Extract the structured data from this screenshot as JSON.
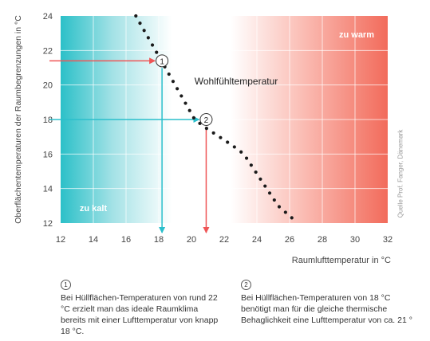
{
  "chart_data": {
    "type": "line",
    "xlabel": "Raumlufttemperatur in °C",
    "ylabel": "Oberflächentemperaturen der Raumbegrenzungen in °C",
    "xlim": [
      12,
      32
    ],
    "ylim": [
      12,
      24
    ],
    "x_ticks": [
      "12",
      "14",
      "16",
      "18",
      "20",
      "22",
      "24",
      "26",
      "28",
      "30",
      "32"
    ],
    "y_ticks": [
      "12",
      "14",
      "16",
      "18",
      "20",
      "22",
      "24"
    ],
    "series": [
      {
        "name": "Wohlfühltemperatur",
        "style": "dotted",
        "points": [
          [
            16.6,
            24
          ],
          [
            17.2,
            23
          ],
          [
            17.8,
            22
          ],
          [
            18.4,
            21
          ],
          [
            19.0,
            20
          ],
          [
            19.6,
            19
          ],
          [
            20.2,
            18
          ],
          [
            20.9,
            17.5
          ],
          [
            21.7,
            17
          ],
          [
            22.5,
            16.5
          ],
          [
            23.2,
            16
          ],
          [
            23.9,
            15
          ],
          [
            24.6,
            14
          ],
          [
            25.3,
            13
          ],
          [
            26.5,
            12
          ]
        ]
      }
    ],
    "region_labels": {
      "cold": "zu kalt",
      "warm": "zu warm"
    },
    "markers": [
      {
        "id": "1",
        "x": 18.2,
        "y": 21.4
      },
      {
        "id": "2",
        "x": 20.9,
        "y": 18
      }
    ],
    "colors": {
      "cold": "#2bc0c8",
      "warm": "#f26b5b",
      "arrow_cold": "#2bbfcc",
      "arrow_warm": "#ef5556"
    }
  },
  "source_note": "Quelle Prof. Fanger, Dänemark",
  "notes": [
    {
      "num": "1",
      "text": "Bei Hüllflächen-Temperaturen von rund 22 °C erzielt man das ideale Raumklima bereits mit einer Lufttemperatur von knapp 18 °C."
    },
    {
      "num": "2",
      "text": "Bei Hüllflächen-Temperaturen von 18 °C benötigt man für die gleiche thermische Behaglichkeit eine Lufttemperatur von ca. 21 °"
    }
  ]
}
